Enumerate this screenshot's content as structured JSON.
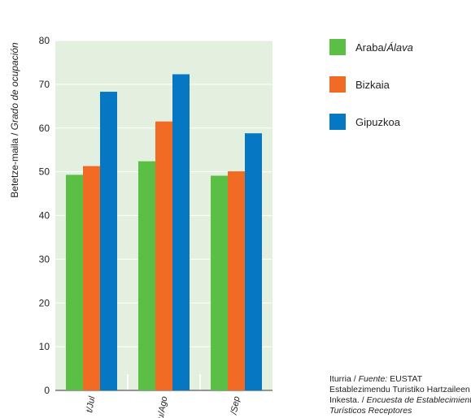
{
  "chart_data": {
    "type": "bar",
    "title": "",
    "ylabel": {
      "basque": "Betetze-maila",
      "sep": " / ",
      "spanish": "Grado de ocupación"
    },
    "xlabel": "",
    "ylim": [
      0,
      80
    ],
    "yticks": [
      0,
      10,
      20,
      30,
      40,
      50,
      60,
      70,
      80
    ],
    "categories": [
      "Uzt/Jul",
      "Abu/Ago",
      "Ira/Sep"
    ],
    "category_visible": [
      "t/Jul",
      "u/Ago",
      "/Sep"
    ],
    "grid": true,
    "legend_position": "top-right",
    "series": [
      {
        "name": "Araba/Álava",
        "name_basque": "Araba/",
        "name_spanish": "Álava",
        "color": "#5cbf45",
        "values": [
          49.3,
          52.4,
          49.1
        ]
      },
      {
        "name": "Bizkaia",
        "color": "#f26b24",
        "values": [
          51.3,
          61.5,
          50.1
        ]
      },
      {
        "name": "Gipuzkoa",
        "color": "#0677c2",
        "values": [
          68.3,
          72.3,
          58.8
        ]
      }
    ]
  },
  "source": {
    "label_basque": "Iturria /",
    "label_spanish": "Fuente:",
    "org": "EUSTAT",
    "line2": "Establezimendu Turistiko Hartzaileen",
    "line3_basque": "Inkesta. /",
    "line3_spanish": "Encuesta de Establecimientos",
    "line4_spanish": "Turísticos Receptores"
  },
  "colors": {
    "plot_bg": "#e4f0df",
    "grid": "#ffffff",
    "axis": "#333333"
  }
}
